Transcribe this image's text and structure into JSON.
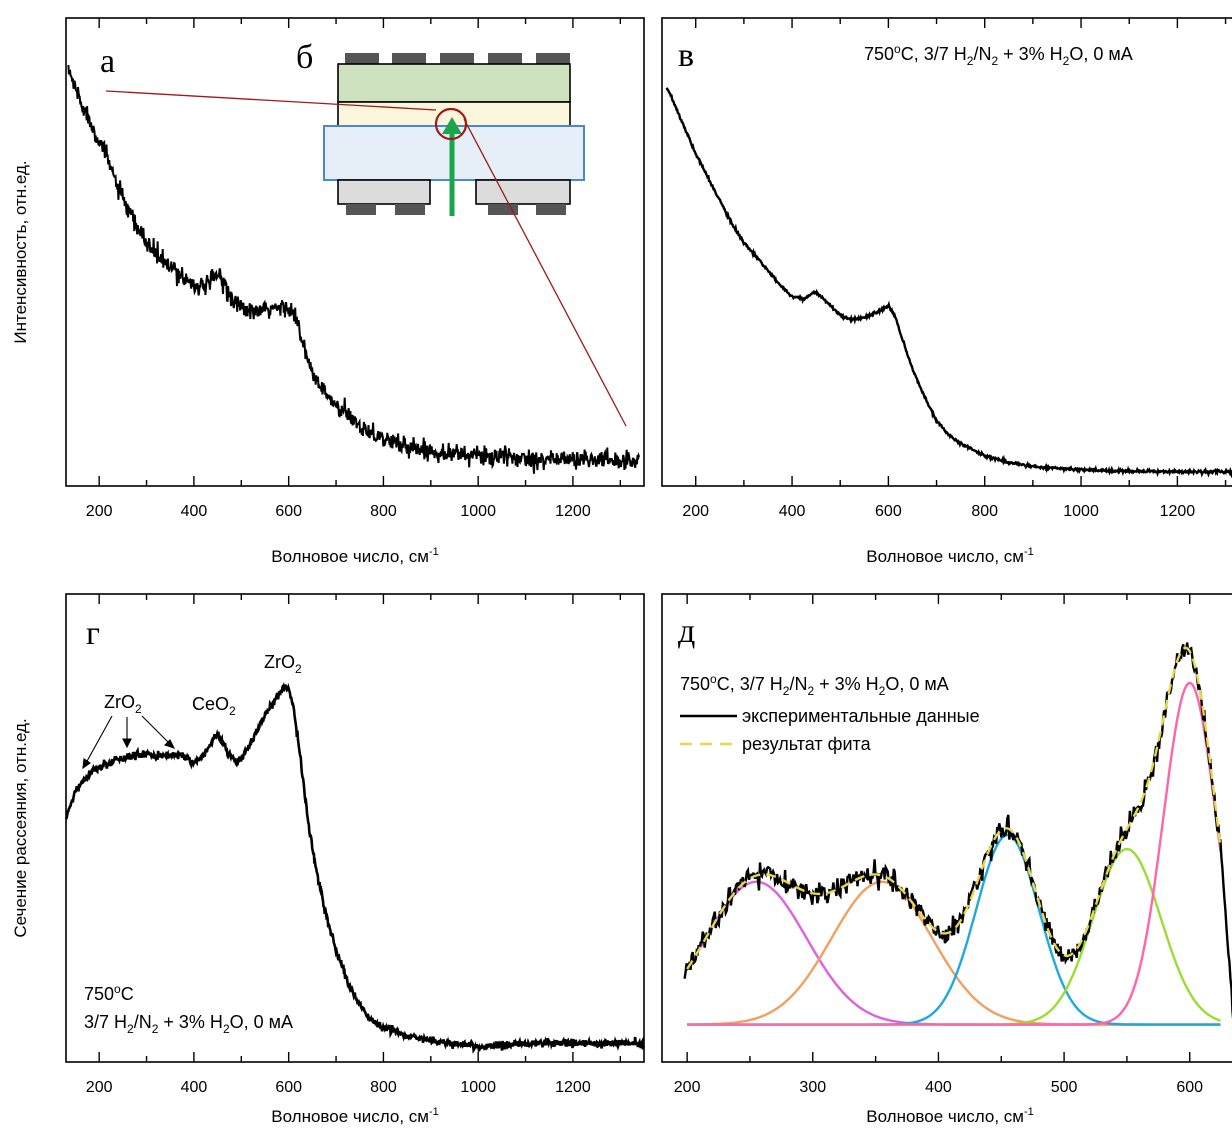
{
  "chart_data": [
    {
      "panel": "a",
      "type": "line",
      "xlabel": "Волновое число, см",
      "xlabel_sup": "-1",
      "ylabel": "Интенсивность, отн.ед.",
      "xlim": [
        130,
        1350
      ],
      "xticks": [
        200,
        400,
        600,
        800,
        1000,
        1200
      ],
      "ylim": [
        0,
        1
      ],
      "noise": 0.01,
      "series": [
        {
          "x": [
            135,
            150,
            175,
            200,
            225,
            250,
            275,
            300,
            325,
            350,
            375,
            400,
            425,
            440,
            450,
            460,
            475,
            500,
            525,
            550,
            575,
            600,
            615,
            630,
            650,
            675,
            700,
            725,
            750,
            775,
            800,
            850,
            900,
            950,
            1000,
            1050,
            1100,
            1150,
            1200,
            1250,
            1300,
            1340
          ],
          "y": [
            0.89,
            0.85,
            0.79,
            0.74,
            0.68,
            0.61,
            0.56,
            0.52,
            0.49,
            0.465,
            0.45,
            0.43,
            0.425,
            0.44,
            0.455,
            0.44,
            0.41,
            0.38,
            0.37,
            0.375,
            0.38,
            0.385,
            0.36,
            0.3,
            0.24,
            0.2,
            0.17,
            0.15,
            0.13,
            0.115,
            0.1,
            0.085,
            0.075,
            0.07,
            0.065,
            0.062,
            0.06,
            0.058,
            0.057,
            0.056,
            0.055,
            0.055
          ]
        }
      ]
    },
    {
      "panel": "в",
      "type": "line",
      "title": "750",
      "title_sup_o": "o",
      "title_rest": "C, 3/7 H",
      "title_sub_2a": "2",
      "title_mid": "/N",
      "title_sub_2b": "2",
      "title_mid2": " + 3% H",
      "title_sub_2c": "2",
      "title_end": "O, 0 мА",
      "xlabel": "Волновое число, см",
      "xlabel_sup": "-1",
      "xlim": [
        130,
        1330
      ],
      "xticks": [
        200,
        400,
        600,
        800,
        1000,
        1200
      ],
      "ylim": [
        0,
        1
      ],
      "noise": 0.0015,
      "series": [
        {
          "x": [
            140,
            150,
            175,
            200,
            225,
            250,
            275,
            300,
            325,
            350,
            375,
            400,
            425,
            440,
            450,
            460,
            475,
            500,
            525,
            550,
            575,
            590,
            600,
            615,
            630,
            650,
            675,
            700,
            725,
            750,
            800,
            850,
            900,
            950,
            1000,
            1050,
            1100,
            1150,
            1200,
            1250,
            1300,
            1330
          ],
          "y": [
            0.85,
            0.83,
            0.77,
            0.71,
            0.66,
            0.61,
            0.56,
            0.52,
            0.49,
            0.46,
            0.43,
            0.405,
            0.4,
            0.41,
            0.415,
            0.405,
            0.39,
            0.365,
            0.355,
            0.36,
            0.37,
            0.38,
            0.385,
            0.36,
            0.31,
            0.25,
            0.19,
            0.14,
            0.11,
            0.09,
            0.065,
            0.05,
            0.042,
            0.038,
            0.035,
            0.033,
            0.032,
            0.031,
            0.031,
            0.03,
            0.03,
            0.03
          ]
        }
      ]
    },
    {
      "panel": "г",
      "type": "line",
      "xlabel": "Волновое число, см",
      "xlabel_sup": "-1",
      "ylabel": "Сечение рассеяния, отн.ед.",
      "xlim": [
        130,
        1350
      ],
      "xticks": [
        200,
        400,
        600,
        800,
        1000,
        1200
      ],
      "ylim": [
        0,
        1
      ],
      "noise": 0.004,
      "series": [
        {
          "x": [
            130,
            150,
            175,
            200,
            225,
            250,
            275,
            300,
            325,
            350,
            375,
            400,
            425,
            440,
            450,
            460,
            475,
            490,
            500,
            525,
            550,
            575,
            590,
            600,
            610,
            625,
            640,
            660,
            680,
            700,
            725,
            750,
            775,
            800,
            850,
            900,
            950,
            1000,
            1050,
            1100,
            1150,
            1200,
            1250,
            1300,
            1350
          ],
          "y": [
            0.52,
            0.58,
            0.61,
            0.63,
            0.64,
            0.65,
            0.655,
            0.66,
            0.655,
            0.655,
            0.655,
            0.64,
            0.66,
            0.69,
            0.7,
            0.685,
            0.655,
            0.64,
            0.65,
            0.69,
            0.74,
            0.78,
            0.8,
            0.8,
            0.76,
            0.65,
            0.52,
            0.4,
            0.31,
            0.24,
            0.17,
            0.12,
            0.09,
            0.075,
            0.055,
            0.045,
            0.04,
            0.033,
            0.035,
            0.04,
            0.04,
            0.04,
            0.04,
            0.04,
            0.04
          ]
        }
      ],
      "annotations": [
        {
          "text": "ZrO",
          "sub": "2",
          "label": "ZrO2 (low)"
        },
        {
          "text": "CeO",
          "sub": "2",
          "label": "CeO2"
        },
        {
          "text": "ZrO",
          "sub": "2",
          "label": "ZrO2 (600)"
        }
      ],
      "legend_text": {
        "line1_a": "750",
        "line1_sup": "o",
        "line1_b": "C",
        "line2_a": "3/7 H",
        "line2_sub1": "2",
        "line2_b": "/N",
        "line2_sub2": "2",
        "line2_c": " + 3% H",
        "line2_sub3": "2",
        "line2_d": "O, 0 мА"
      }
    },
    {
      "panel": "д",
      "type": "line",
      "xlabel": "Волновое число, см",
      "xlabel_sup": "-1",
      "xlim": [
        180,
        640
      ],
      "xticks": [
        200,
        300,
        400,
        500,
        600
      ],
      "ylim": [
        0,
        1
      ],
      "legend": [
        "экспериментальные данные",
        "результат фита"
      ],
      "title_a": "750",
      "title_sup": "o",
      "title_b": "C, 3/7 H",
      "title_sub1": "2",
      "title_c": "/N",
      "title_sub2": "2",
      "title_d": " + 3% H",
      "title_sub3": "2",
      "title_e": "O, 0 мА",
      "baseline": 0.08,
      "components": [
        {
          "center": 255,
          "height": 0.305,
          "sigma": 40,
          "color": "#e060e0"
        },
        {
          "center": 355,
          "height": 0.305,
          "sigma": 40,
          "color": "#f0a060"
        },
        {
          "center": 455,
          "height": 0.405,
          "sigma": 25,
          "color": "#1ea8e0"
        },
        {
          "center": 550,
          "height": 0.375,
          "sigma": 27,
          "color": "#99dd33"
        },
        {
          "center": 600,
          "height": 0.73,
          "sigma": 21,
          "color": "#ff66aa"
        }
      ],
      "fit_color": "#e6d84a",
      "noise": 0.012
    }
  ],
  "inset": {
    "letters": [
      "а",
      "б"
    ]
  },
  "panel_letters": {
    "a": "а",
    "b": "б",
    "v": "в",
    "g": "г",
    "d": "д"
  }
}
